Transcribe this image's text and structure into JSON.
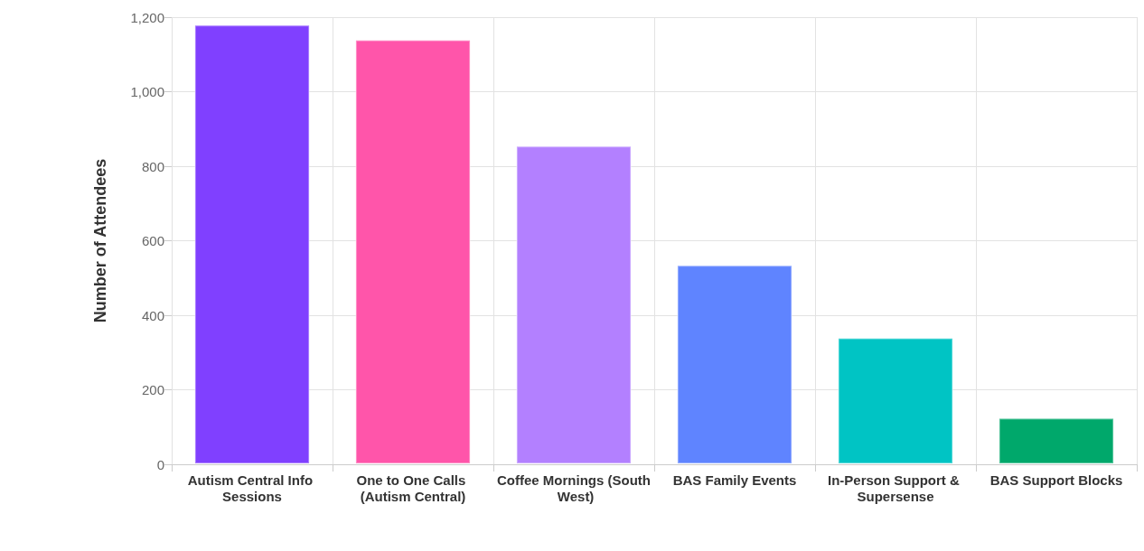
{
  "chart_data": {
    "type": "bar",
    "ylabel": "Number of Attendees",
    "categories": [
      "Autism Central Info Sessions",
      "One to One Calls (Autism Central)",
      "Coffee Mornings (South West)",
      "BAS Family Events",
      "In-Person Support & Supersense",
      "BAS Support Blocks"
    ],
    "values": [
      1180,
      1140,
      855,
      535,
      340,
      125
    ],
    "colors": [
      "#8040ff",
      "#ff55aa",
      "#b380ff",
      "#5f84ff",
      "#00c4c4",
      "#00a86b"
    ],
    "ylim": [
      0,
      1200
    ],
    "yticks": [
      0,
      200,
      400,
      600,
      800,
      {
        "value": 1000,
        "label": "1,000"
      },
      {
        "value": 1200,
        "label": "1,200"
      }
    ],
    "grid": true
  }
}
